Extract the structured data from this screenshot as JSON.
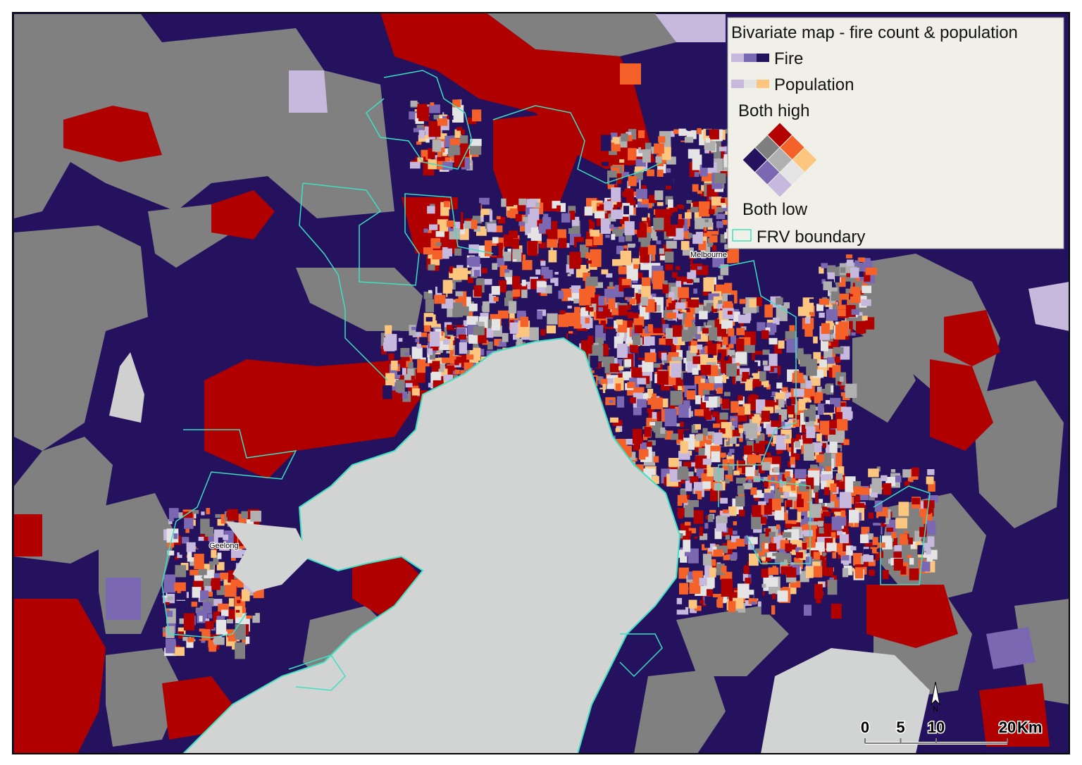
{
  "legend": {
    "title": "Bivariate map - fire count & population",
    "fire": "Fire",
    "population": "Population",
    "both_high": "Both high",
    "both_low": "Both low",
    "boundary": "FRV boundary"
  },
  "places": {
    "melbourne": "Melbourne",
    "geelong": "Geelong"
  },
  "scale_bar": {
    "ticks": [
      0,
      5,
      10,
      20
    ],
    "unit": "Km"
  },
  "north_arrow": "N"
}
